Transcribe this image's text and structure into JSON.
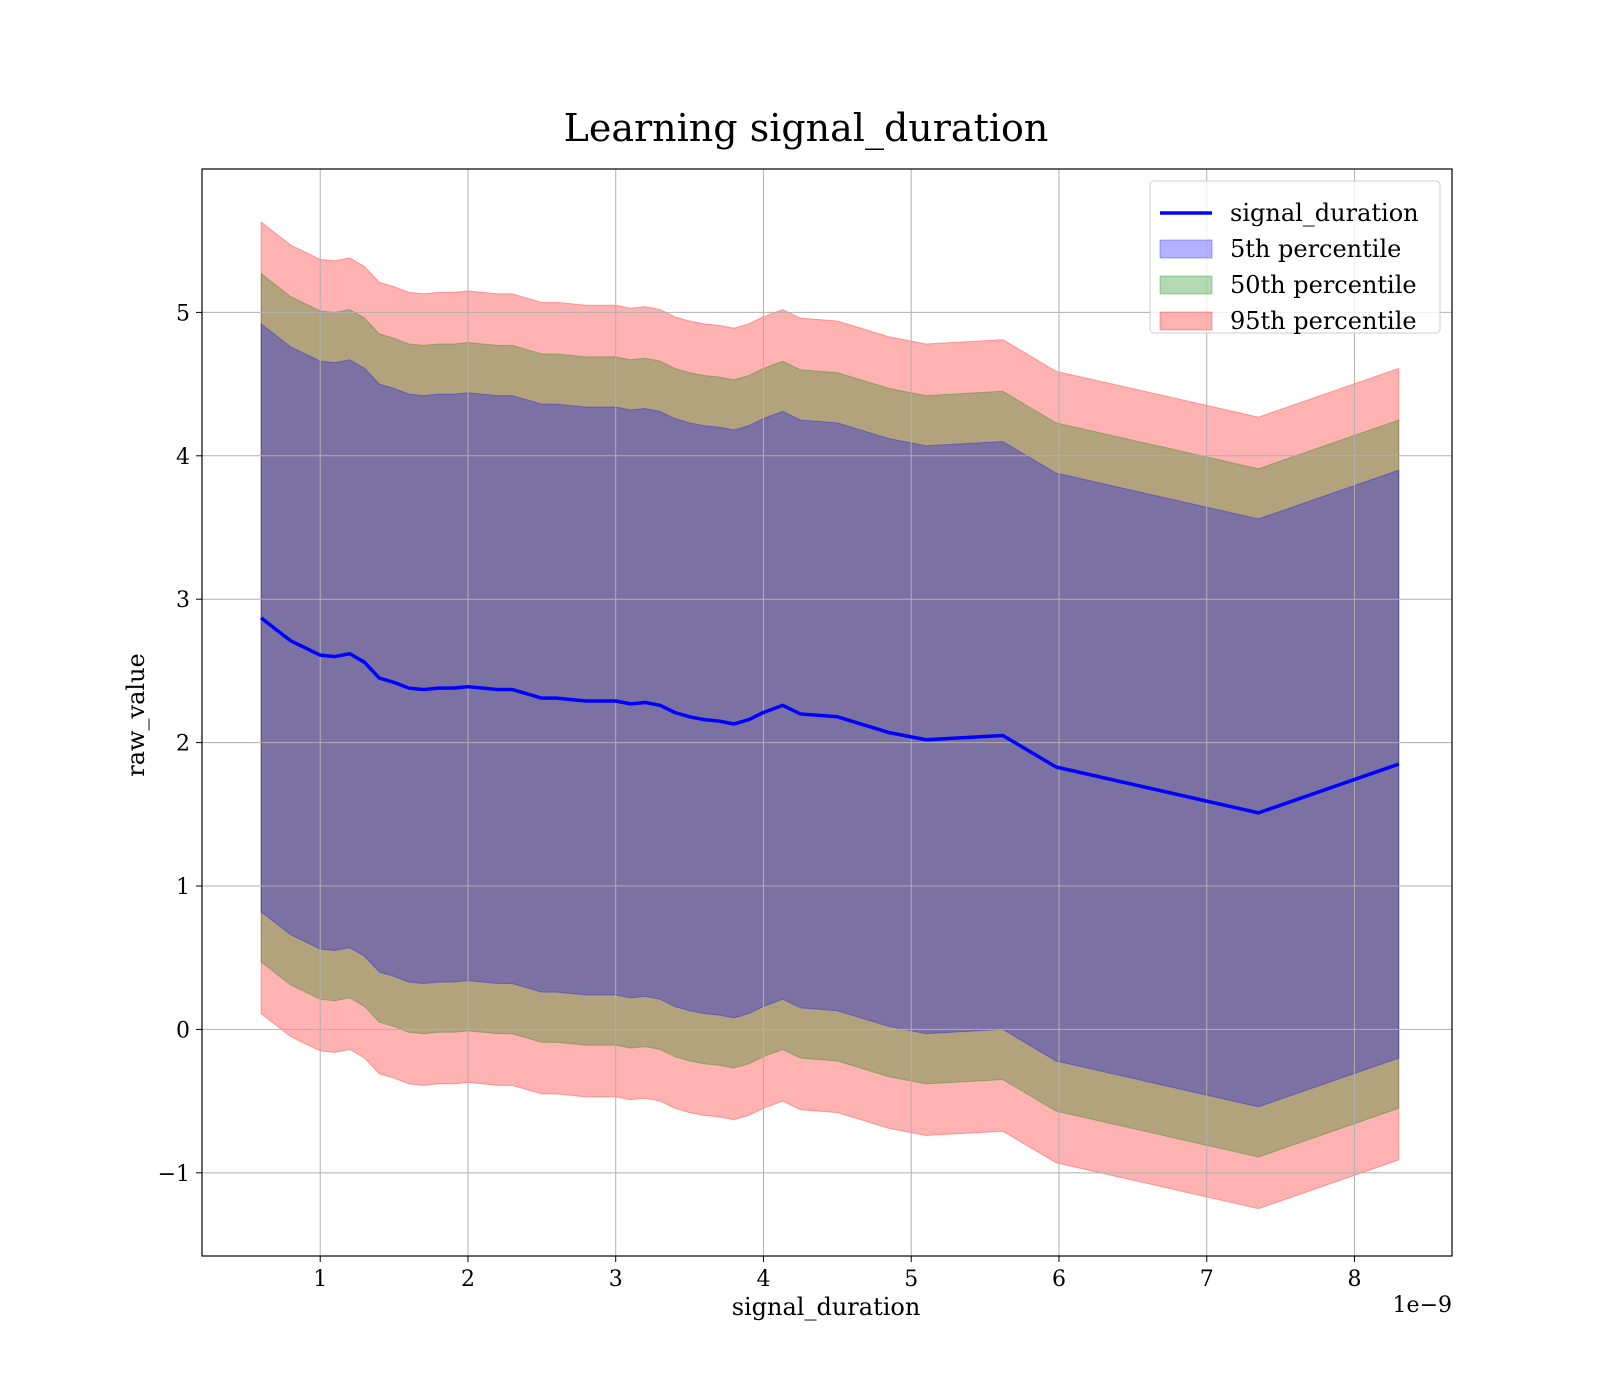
{
  "chart_data": {
    "type": "line",
    "title": "Learning signal_duration",
    "xlabel": "signal_duration",
    "ylabel": "raw_value",
    "x_offset_text": "1e−9",
    "x_scale_note": "x values are in units of 1e-9",
    "xlim": [
      0.2,
      8.66
    ],
    "ylim": [
      -1.58,
      6.0
    ],
    "xticks": [
      1,
      2,
      3,
      4,
      5,
      6,
      7,
      8
    ],
    "xtick_labels": [
      "1",
      "2",
      "3",
      "4",
      "5",
      "6",
      "7",
      "8"
    ],
    "yticks": [
      -1,
      0,
      1,
      2,
      3,
      4,
      5
    ],
    "ytick_labels": [
      "−1",
      "0",
      "1",
      "2",
      "3",
      "4",
      "5"
    ],
    "grid": true,
    "legend_position": "top-right",
    "x": [
      0.6,
      0.7,
      0.8,
      0.9,
      1.0,
      1.1,
      1.2,
      1.3,
      1.4,
      1.5,
      1.6,
      1.7,
      1.8,
      1.9,
      2.0,
      2.1,
      2.2,
      2.3,
      2.4,
      2.5,
      2.6,
      2.7,
      2.8,
      2.9,
      3.0,
      3.1,
      3.2,
      3.3,
      3.4,
      3.5,
      3.6,
      3.7,
      3.8,
      3.9,
      4.0,
      4.13,
      4.25,
      4.5,
      4.85,
      5.1,
      5.62,
      5.98,
      7.35,
      8.3
    ],
    "series": [
      {
        "name": "signal_duration",
        "kind": "line",
        "color": "#0000ff",
        "values": [
          2.87,
          2.79,
          2.71,
          2.66,
          2.61,
          2.6,
          2.62,
          2.56,
          2.45,
          2.42,
          2.38,
          2.37,
          2.38,
          2.38,
          2.39,
          2.38,
          2.37,
          2.37,
          2.34,
          2.31,
          2.31,
          2.3,
          2.29,
          2.29,
          2.29,
          2.27,
          2.28,
          2.26,
          2.21,
          2.18,
          2.16,
          2.15,
          2.13,
          2.16,
          2.21,
          2.26,
          2.2,
          2.18,
          2.07,
          2.02,
          2.05,
          1.83,
          1.51,
          1.85
        ]
      },
      {
        "name": "5th percentile",
        "kind": "band",
        "color": "#0000ff",
        "opacity": 0.3,
        "lower": [
          0.82,
          0.74,
          0.66,
          0.61,
          0.56,
          0.55,
          0.57,
          0.51,
          0.4,
          0.37,
          0.33,
          0.32,
          0.33,
          0.33,
          0.34,
          0.33,
          0.32,
          0.32,
          0.29,
          0.26,
          0.26,
          0.25,
          0.24,
          0.24,
          0.24,
          0.22,
          0.23,
          0.21,
          0.16,
          0.13,
          0.11,
          0.1,
          0.08,
          0.11,
          0.16,
          0.21,
          0.15,
          0.13,
          0.02,
          -0.03,
          0.0,
          -0.22,
          -0.54,
          -0.2
        ],
        "upper": [
          4.92,
          4.84,
          4.76,
          4.71,
          4.66,
          4.65,
          4.67,
          4.61,
          4.5,
          4.47,
          4.43,
          4.42,
          4.43,
          4.43,
          4.44,
          4.43,
          4.42,
          4.42,
          4.39,
          4.36,
          4.36,
          4.35,
          4.34,
          4.34,
          4.34,
          4.32,
          4.33,
          4.31,
          4.26,
          4.23,
          4.21,
          4.2,
          4.18,
          4.21,
          4.26,
          4.31,
          4.25,
          4.23,
          4.12,
          4.07,
          4.1,
          3.88,
          3.56,
          3.9
        ]
      },
      {
        "name": "50th percentile",
        "kind": "band",
        "color": "#008000",
        "opacity": 0.3,
        "lower": [
          0.47,
          0.39,
          0.31,
          0.26,
          0.21,
          0.2,
          0.22,
          0.16,
          0.05,
          0.02,
          -0.02,
          -0.03,
          -0.02,
          -0.02,
          -0.01,
          -0.02,
          -0.03,
          -0.03,
          -0.06,
          -0.09,
          -0.09,
          -0.1,
          -0.11,
          -0.11,
          -0.11,
          -0.13,
          -0.12,
          -0.14,
          -0.19,
          -0.22,
          -0.24,
          -0.25,
          -0.27,
          -0.24,
          -0.19,
          -0.14,
          -0.2,
          -0.22,
          -0.33,
          -0.38,
          -0.35,
          -0.57,
          -0.89,
          -0.55
        ],
        "upper": [
          5.27,
          5.19,
          5.11,
          5.06,
          5.01,
          5.0,
          5.02,
          4.96,
          4.85,
          4.82,
          4.78,
          4.77,
          4.78,
          4.78,
          4.79,
          4.78,
          4.77,
          4.77,
          4.74,
          4.71,
          4.71,
          4.7,
          4.69,
          4.69,
          4.69,
          4.67,
          4.68,
          4.66,
          4.61,
          4.58,
          4.56,
          4.55,
          4.53,
          4.56,
          4.61,
          4.66,
          4.6,
          4.58,
          4.47,
          4.42,
          4.45,
          4.23,
          3.91,
          4.25
        ]
      },
      {
        "name": "95th percentile",
        "kind": "band",
        "color": "#ff0000",
        "opacity": 0.3,
        "lower": [
          0.11,
          0.03,
          -0.05,
          -0.1,
          -0.15,
          -0.16,
          -0.14,
          -0.2,
          -0.31,
          -0.34,
          -0.38,
          -0.39,
          -0.38,
          -0.38,
          -0.37,
          -0.38,
          -0.39,
          -0.39,
          -0.42,
          -0.45,
          -0.45,
          -0.46,
          -0.47,
          -0.47,
          -0.47,
          -0.49,
          -0.48,
          -0.5,
          -0.55,
          -0.58,
          -0.6,
          -0.61,
          -0.63,
          -0.6,
          -0.55,
          -0.5,
          -0.56,
          -0.58,
          -0.69,
          -0.74,
          -0.71,
          -0.93,
          -1.25,
          -0.91
        ],
        "upper": [
          5.63,
          5.55,
          5.47,
          5.42,
          5.37,
          5.36,
          5.38,
          5.32,
          5.21,
          5.18,
          5.14,
          5.13,
          5.14,
          5.14,
          5.15,
          5.14,
          5.13,
          5.13,
          5.1,
          5.07,
          5.07,
          5.06,
          5.05,
          5.05,
          5.05,
          5.03,
          5.04,
          5.02,
          4.97,
          4.94,
          4.92,
          4.91,
          4.89,
          4.92,
          4.97,
          5.02,
          4.96,
          4.94,
          4.83,
          4.78,
          4.81,
          4.59,
          4.27,
          4.61
        ]
      }
    ]
  }
}
